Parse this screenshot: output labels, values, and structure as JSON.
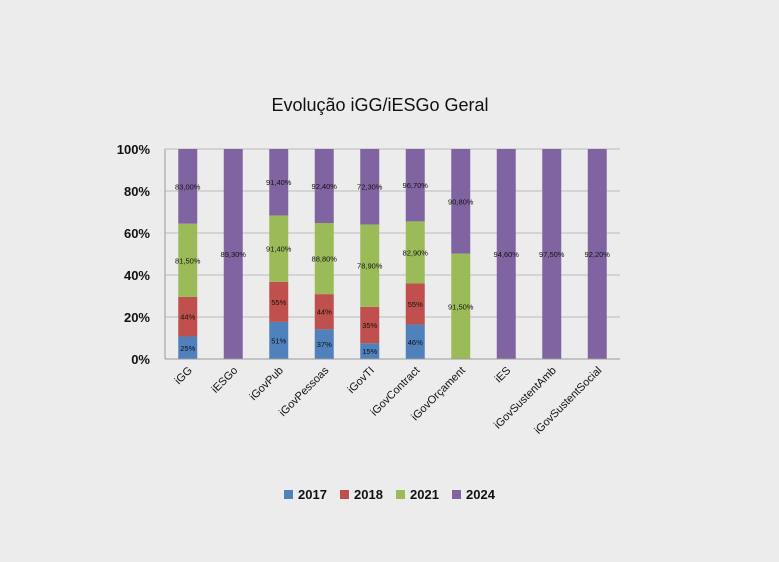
{
  "chart_data": {
    "type": "bar",
    "stacked_percent": true,
    "title": "Evolução  iGG/iESGo Geral",
    "categories": [
      "iGG",
      "iESGo",
      "iGovPub",
      "iGovPessoas",
      "iGovTI",
      "iGovContract",
      "iGovOrçament",
      "iES",
      "iGovSustentAmb",
      "iGovSustentSocial"
    ],
    "ylim": [
      0,
      100
    ],
    "y_ticks": [
      "0%",
      "20%",
      "40%",
      "60%",
      "80%",
      "100%"
    ],
    "grid": true,
    "legend_position": "bottom",
    "series": [
      {
        "name": "2017",
        "color": "#4f81bd",
        "values": [
          25,
          null,
          51,
          37,
          15,
          46,
          null,
          null,
          null,
          null
        ],
        "labels": [
          "25%",
          "",
          "51%",
          "37%",
          "15%",
          "46%",
          "",
          "",
          "",
          ""
        ]
      },
      {
        "name": "2018",
        "color": "#c0504d",
        "values": [
          44,
          null,
          55,
          44,
          35,
          55,
          null,
          null,
          null,
          null
        ],
        "labels": [
          "44%",
          "",
          "55%",
          "44%",
          "35%",
          "55%",
          "",
          "",
          "",
          ""
        ]
      },
      {
        "name": "2021",
        "color": "#9bbb59",
        "values": [
          81.5,
          null,
          91.4,
          88.8,
          78.9,
          82.9,
          91.5,
          null,
          null,
          null
        ],
        "labels": [
          "81,50%",
          "",
          "91,40%",
          "88,80%",
          "78,90%",
          "82,90%",
          "91,50%",
          "",
          "",
          ""
        ]
      },
      {
        "name": "2024",
        "color": "#8064a2",
        "values": [
          83,
          89.3,
          91.4,
          92.4,
          72.3,
          96.7,
          90.8,
          94.6,
          97.5,
          92.2
        ],
        "labels": [
          "83,00%",
          "89,30%",
          "91,40%",
          "92,40%",
          "72,30%",
          "96,70%",
          "90,80%",
          "94,60%",
          "97,50%",
          "92,20%"
        ]
      }
    ]
  }
}
